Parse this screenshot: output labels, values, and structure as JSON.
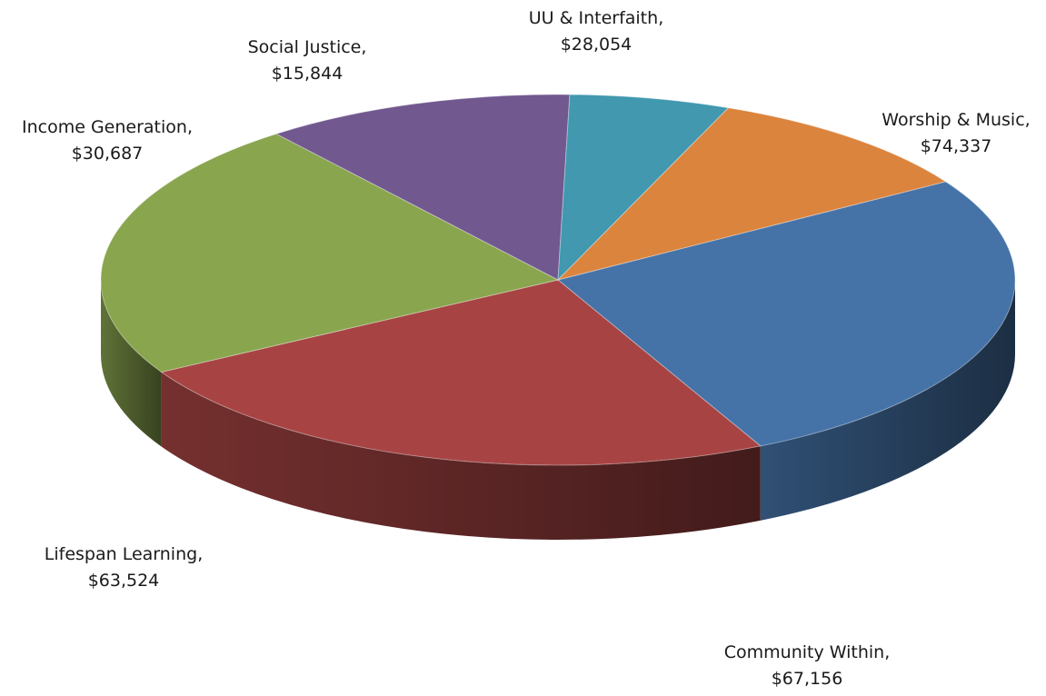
{
  "chart_data": {
    "type": "pie",
    "style": "3d",
    "start_angle_deg": 58,
    "slices": [
      {
        "name": "Worship & Music",
        "value_label": "$74,337",
        "value": 74337,
        "color": "#4572A7"
      },
      {
        "name": "Community Within",
        "value_label": "$67,156",
        "value": 67156,
        "color": "#A74443"
      },
      {
        "name": "Lifespan Learning",
        "value_label": "$63,524",
        "value": 63524,
        "color": "#89A54E"
      },
      {
        "name": "Income Generation",
        "value_label": "$30,687",
        "value": 30687,
        "color": "#71588F"
      },
      {
        "name": "Social Justice",
        "value_label": "$15,844",
        "value": 15844,
        "color": "#4198AF"
      },
      {
        "name": "UU & Interfaith",
        "value_label": "$28,054",
        "value": 28054,
        "color": "#DB843D"
      }
    ]
  }
}
